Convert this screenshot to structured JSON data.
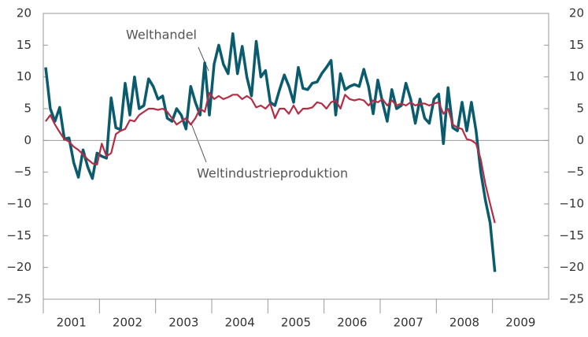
{
  "chart_data": {
    "type": "line",
    "annotations": [
      "Welthandel",
      "Weltindustrieproduktion"
    ],
    "x": [
      2001.042,
      2001.125,
      2001.208,
      2001.292,
      2001.375,
      2001.458,
      2001.542,
      2001.625,
      2001.708,
      2001.792,
      2001.875,
      2001.958,
      2002.042,
      2002.125,
      2002.208,
      2002.292,
      2002.375,
      2002.458,
      2002.542,
      2002.625,
      2002.708,
      2002.792,
      2002.875,
      2002.958,
      2003.042,
      2003.125,
      2003.208,
      2003.292,
      2003.375,
      2003.458,
      2003.542,
      2003.625,
      2003.708,
      2003.792,
      2003.875,
      2003.958,
      2004.042,
      2004.125,
      2004.208,
      2004.292,
      2004.375,
      2004.458,
      2004.542,
      2004.625,
      2004.708,
      2004.792,
      2004.875,
      2004.958,
      2005.042,
      2005.125,
      2005.208,
      2005.292,
      2005.375,
      2005.458,
      2005.542,
      2005.625,
      2005.708,
      2005.792,
      2005.875,
      2005.958,
      2006.042,
      2006.125,
      2006.208,
      2006.292,
      2006.375,
      2006.458,
      2006.542,
      2006.625,
      2006.708,
      2006.792,
      2006.875,
      2006.958,
      2007.042,
      2007.125,
      2007.208,
      2007.292,
      2007.375,
      2007.458,
      2007.542,
      2007.625,
      2007.708,
      2007.792,
      2007.875,
      2007.958,
      2008.042,
      2008.125,
      2008.208,
      2008.292,
      2008.375,
      2008.458,
      2008.542,
      2008.625,
      2008.708,
      2008.792,
      2008.875,
      2008.958,
      2009.042
    ],
    "series": [
      {
        "name": "Welthandel",
        "color": "#0b5b6f",
        "values": [
          11.5,
          5,
          3,
          5.2,
          0.2,
          0.4,
          -3.5,
          -5.8,
          -1.5,
          -4.2,
          -6,
          -2,
          -2.5,
          -2.8,
          6.7,
          2,
          1.7,
          9,
          4,
          10,
          5,
          5.5,
          9.7,
          8.5,
          6.5,
          7,
          3.5,
          3,
          5,
          4,
          1.8,
          8.5,
          6,
          4,
          12.2,
          4,
          12,
          15,
          12,
          10.5,
          16.8,
          10.5,
          14.8,
          10,
          7,
          15.6,
          10,
          11,
          6,
          5.5,
          8,
          10.3,
          8.5,
          6,
          11.5,
          8.2,
          8,
          9,
          9.2,
          10.5,
          11.5,
          12.6,
          4,
          10.5,
          8,
          8.5,
          8.8,
          8.5,
          11.2,
          8.5,
          4.2,
          9.5,
          6,
          3,
          8,
          5,
          5.5,
          9,
          6.5,
          2.7,
          6.5,
          3.5,
          2.7,
          6.5,
          7.3,
          -0.5,
          8.3,
          2,
          1.5,
          6,
          1.5,
          6,
          1.5,
          -5,
          -9.5,
          -13,
          -20.7
        ]
      },
      {
        "name": "Weltindustrieproduktion",
        "color": "#b32d44",
        "values": [
          3,
          4,
          2.5,
          1.3,
          0.2,
          -0.2,
          -1,
          -1.5,
          -2.2,
          -3,
          -3.6,
          -3.8,
          -0.5,
          -2.5,
          -2,
          1,
          1.5,
          1.8,
          3.2,
          3,
          4,
          4.5,
          5,
          5,
          4.8,
          5,
          4.5,
          3.5,
          2.5,
          3,
          3.5,
          2.5,
          3.5,
          5,
          4.5,
          7.5,
          6.5,
          7,
          6.5,
          6.8,
          7.2,
          7.2,
          6.5,
          7,
          6.5,
          5.2,
          5.5,
          5,
          5.8,
          3.5,
          5,
          5,
          4.2,
          5.5,
          4.2,
          5,
          5,
          5.2,
          6,
          5.8,
          5,
          6,
          6.3,
          5,
          7.2,
          6.5,
          6.3,
          6.5,
          6.3,
          5.5,
          6.3,
          6,
          6.5,
          5.5,
          6.3,
          5.5,
          5.8,
          5.5,
          6,
          5.5,
          5.8,
          5.8,
          5.5,
          5.8,
          6,
          4.2,
          5,
          2.5,
          2,
          1.8,
          0.2,
          0,
          -0.5,
          -3,
          -7,
          -10,
          -13
        ]
      }
    ],
    "xlim": [
      2001,
      2010
    ],
    "xticks": [
      {
        "value": 2001.5,
        "label": "2001"
      },
      {
        "value": 2002.5,
        "label": "2002"
      },
      {
        "value": 2003.5,
        "label": "2003"
      },
      {
        "value": 2004.5,
        "label": "2004"
      },
      {
        "value": 2005.5,
        "label": "2005"
      },
      {
        "value": 2006.5,
        "label": "2006"
      },
      {
        "value": 2007.5,
        "label": "2007"
      },
      {
        "value": 2008.5,
        "label": "2008"
      },
      {
        "value": 2009.5,
        "label": "2009"
      }
    ],
    "ylim": [
      -25,
      20
    ],
    "yticks": [
      20,
      15,
      10,
      5,
      0,
      {
        "value": -5,
        "label": "−5"
      },
      {
        "value": -10,
        "label": "−10"
      },
      {
        "value": -15,
        "label": "−15"
      },
      {
        "value": -20,
        "label": "−20"
      },
      {
        "value": -25,
        "label": "−25"
      }
    ],
    "y2lim": [
      -25,
      20
    ],
    "y2ticks": [
      20,
      15,
      10,
      5,
      0,
      {
        "value": -5,
        "label": "−5"
      },
      {
        "value": -10,
        "label": "−10"
      },
      {
        "value": -15,
        "label": "−15"
      },
      {
        "value": -20,
        "label": "−20"
      },
      {
        "value": -25,
        "label": "−25"
      }
    ]
  }
}
